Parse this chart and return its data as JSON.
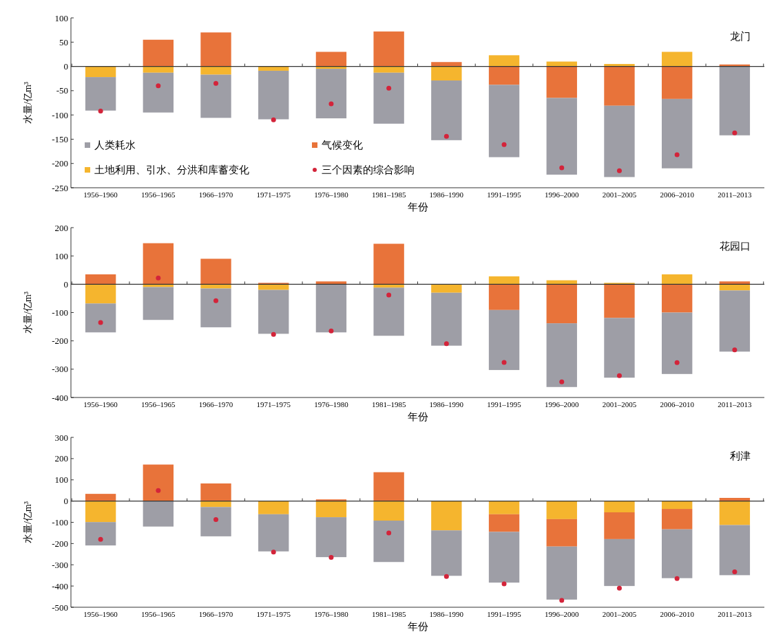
{
  "chart_data": [
    {
      "type": "bar",
      "stacked": true,
      "xlabel": "年份",
      "ylabel": "水量/亿m³",
      "annotations": [
        "龙门"
      ],
      "legend": "bottom left",
      "categories": [
        "1956–1960",
        "1956–1965",
        "1966–1970",
        "1971–1975",
        "1976–1980",
        "1981–1985",
        "1986–1990",
        "1991–1995",
        "1996–2000",
        "2001–2005",
        "2006–2010",
        "2011–2013"
      ],
      "ylim": [
        -250,
        100
      ],
      "yticks": [
        -250,
        -200,
        -150,
        -100,
        -50,
        0,
        50,
        100
      ],
      "grid": false,
      "ref_lines": [
        {
          "axis": "y",
          "value": 0,
          "color": "#333333"
        }
      ],
      "series": [
        {
          "name": "土地利用、引水、分洪和库蓄变化",
          "color": "#f5b52e",
          "values": [
            -22,
            -13,
            -17,
            -9,
            -5,
            -13,
            -29,
            23,
            10,
            5,
            30,
            null
          ]
        },
        {
          "name": "气候变化",
          "color": "#e8733a",
          "values": [
            null,
            55,
            70,
            null,
            30,
            72,
            9,
            -38,
            -65,
            -81,
            -67,
            4
          ]
        },
        {
          "name": "人类耗水",
          "color": "#9e9ea6",
          "values": [
            -69,
            -82,
            -89,
            -100,
            -102,
            -105,
            -123,
            -149,
            -158,
            -147,
            -143,
            -142
          ]
        },
        {
          "name": "三个因素的综合影响",
          "type": "scatter",
          "marker": "circle",
          "color": "#d3243a",
          "x": [
            "1956–1960",
            "1956–1965",
            "1966–1970",
            "1971–1975",
            "1976–1980",
            "1981–1985",
            "1986–1990",
            "1991–1995",
            "1996–2000",
            "2001–2005",
            "2006–2010",
            "2011–2013"
          ],
          "values": [
            -92,
            -40,
            -35,
            -110,
            -77,
            -45,
            -144,
            -161,
            -209,
            -215,
            -182,
            -137
          ]
        }
      ]
    },
    {
      "type": "bar",
      "stacked": true,
      "xlabel": "年份",
      "ylabel": "水量/亿m³",
      "annotations": [
        "花园口"
      ],
      "categories": [
        "1956–1960",
        "1956–1965",
        "1966–1970",
        "1971–1975",
        "1976–1980",
        "1981–1985",
        "1986–1990",
        "1991–1995",
        "1996–2000",
        "2001–2005",
        "2006–2010",
        "2011–2013"
      ],
      "ylim": [
        -400,
        200
      ],
      "yticks": [
        -400,
        -300,
        -200,
        -100,
        0,
        100,
        200
      ],
      "grid": false,
      "ref_lines": [
        {
          "axis": "y",
          "value": 0,
          "color": "#333333"
        }
      ],
      "series": [
        {
          "color": "#f5b52e",
          "values": [
            -68,
            -10,
            -15,
            -20,
            null,
            -12,
            -30,
            28,
            14,
            5,
            35,
            -22
          ]
        },
        {
          "color": "#e8733a",
          "values": [
            35,
            145,
            90,
            5,
            10,
            143,
            null,
            -91,
            -138,
            -119,
            -100,
            10
          ]
        },
        {
          "color": "#9e9ea6",
          "values": [
            -102,
            -116,
            -137,
            -155,
            -170,
            -170,
            -187,
            -212,
            -225,
            -211,
            -217,
            -216
          ]
        },
        {
          "type": "scatter",
          "marker": "circle",
          "color": "#d3243a",
          "x": [
            "1956–1960",
            "1956–1965",
            "1966–1970",
            "1971–1975",
            "1976–1980",
            "1981–1985",
            "1986–1990",
            "1991–1995",
            "1996–2000",
            "2001–2005",
            "2006–2010",
            "2011–2013"
          ],
          "values": [
            -135,
            22,
            -58,
            -177,
            -165,
            -38,
            -210,
            -276,
            -345,
            -323,
            -277,
            -232
          ]
        }
      ]
    },
    {
      "type": "bar",
      "stacked": true,
      "xlabel": "年份",
      "ylabel": "水量/亿m³",
      "annotations": [
        "利津"
      ],
      "categories": [
        "1956–1960",
        "1956–1965",
        "1966–1970",
        "1971–1975",
        "1976–1980",
        "1981–1985",
        "1986–1990",
        "1991–1995",
        "1996–2000",
        "2001–2005",
        "2006–2010",
        "2011–2013"
      ],
      "ylim": [
        -500,
        300
      ],
      "yticks": [
        -500,
        -400,
        -300,
        -200,
        -100,
        0,
        100,
        200,
        300
      ],
      "grid": false,
      "ref_lines": [
        {
          "axis": "y",
          "value": 0,
          "color": "#333333"
        }
      ],
      "series": [
        {
          "color": "#f5b52e",
          "values": [
            -99,
            null,
            -28,
            -62,
            -76,
            -92,
            -138,
            -62,
            -85,
            -53,
            -37,
            -113
          ]
        },
        {
          "color": "#e8733a",
          "values": [
            34,
            172,
            83,
            null,
            8,
            136,
            null,
            -83,
            -129,
            -126,
            -96,
            15
          ]
        },
        {
          "color": "#9e9ea6",
          "values": [
            -110,
            -120,
            -138,
            -175,
            -188,
            -195,
            -214,
            -239,
            -250,
            -221,
            -230,
            -236
          ]
        },
        {
          "type": "scatter",
          "marker": "circle",
          "color": "#d3243a",
          "x": [
            "1956–1960",
            "1956–1965",
            "1966–1970",
            "1971–1975",
            "1976–1980",
            "1981–1985",
            "1986–1990",
            "1991–1995",
            "1996–2000",
            "2001–2005",
            "2006–2010",
            "2011–2013"
          ],
          "values": [
            -180,
            50,
            -87,
            -240,
            -265,
            -150,
            -355,
            -390,
            -468,
            -410,
            -365,
            -333
          ]
        }
      ]
    }
  ]
}
